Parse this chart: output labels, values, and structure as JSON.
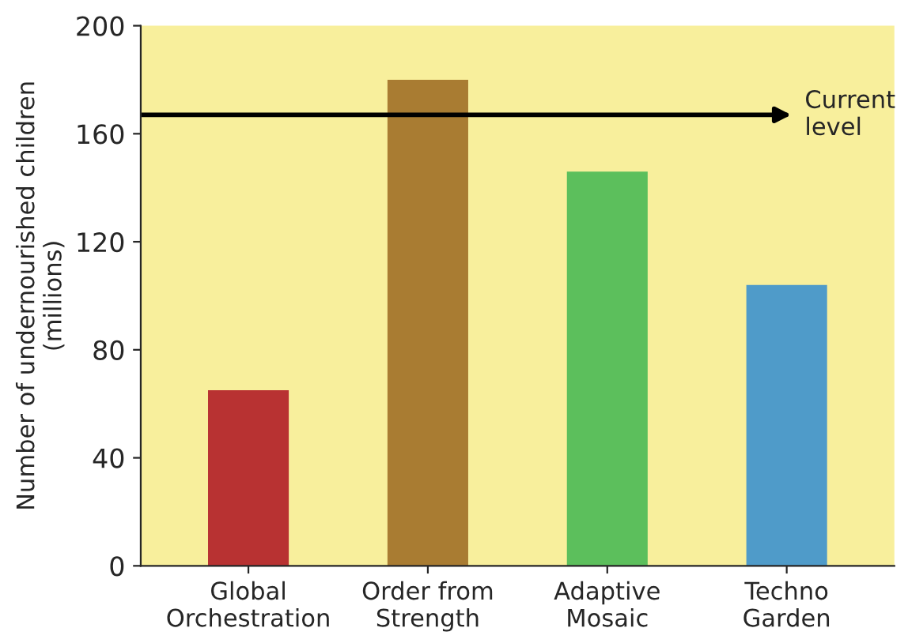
{
  "chart_data": {
    "type": "bar",
    "ylabel": "Number of undernourished children\n(millions)",
    "categories": [
      "Global\nOrchestration",
      "Order from\nStrength",
      "Adaptive\nMosaic",
      "Techno\nGarden"
    ],
    "values": [
      65,
      180,
      146,
      104
    ],
    "colors": [
      "#b83232",
      "#a97c32",
      "#5cbf5c",
      "#4f9bc9"
    ],
    "ylim": [
      0,
      200
    ],
    "yticks": [
      0,
      40,
      80,
      120,
      160,
      200
    ],
    "ref_lines": [
      {
        "axis": "y",
        "value": 167,
        "label": "Current\nlevel",
        "color": "#000000"
      }
    ],
    "grid": false
  }
}
